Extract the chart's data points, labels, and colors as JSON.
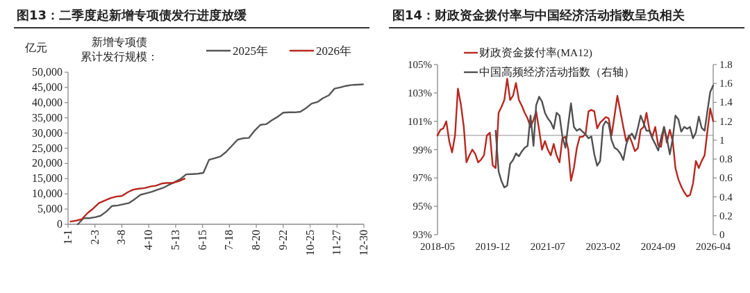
{
  "chart_data": [
    {
      "type": "line",
      "title": "图13：二季度起新增专项债发行进度放缓",
      "ylabel": "亿元",
      "legend_title": "新增专项债累计发行规模：",
      "legend": "top right",
      "grid": false,
      "xlim": [
        "--01-01",
        "--12-30"
      ],
      "xticks": [
        {
          "value": "--01-01",
          "label": "1-1"
        },
        {
          "value": "--02-03",
          "label": "2-3"
        },
        {
          "value": "--03-08",
          "label": "3-8"
        },
        {
          "value": "--04-10",
          "label": "4-10"
        },
        {
          "value": "--05-13",
          "label": "5-13"
        },
        {
          "value": "--06-15",
          "label": "6-15"
        },
        {
          "value": "--07-18",
          "label": "7-18"
        },
        {
          "value": "--08-20",
          "label": "8-20"
        },
        {
          "value": "--09-22",
          "label": "9-22"
        },
        {
          "value": "--10-25",
          "label": "10-25"
        },
        {
          "value": "--11-27",
          "label": "11-27"
        },
        {
          "value": "--12-30",
          "label": "12-30"
        }
      ],
      "ylim": [
        0,
        50000
      ],
      "yticks": [
        0,
        {
          "value": 5000,
          "label": "5,000"
        },
        {
          "value": 10000,
          "label": "10,000"
        },
        {
          "value": 15000,
          "label": "15,000"
        },
        {
          "value": 20000,
          "label": "20,000"
        },
        {
          "value": 25000,
          "label": "25,000"
        },
        {
          "value": 30000,
          "label": "30,000"
        },
        {
          "value": 35000,
          "label": "35,000"
        },
        {
          "value": 40000,
          "label": "40,000"
        },
        {
          "value": 45000,
          "label": "45,000"
        },
        {
          "value": 50000,
          "label": "50,000"
        }
      ],
      "series": [
        {
          "name": "2025年",
          "color": "#555555",
          "x": [
            "--01-13",
            "--01-20",
            "--01-27",
            "--02-03",
            "--02-10",
            "--02-17",
            "--02-24",
            "--03-03",
            "--03-10",
            "--03-17",
            "--03-24",
            "--03-31",
            "--04-07",
            "--04-14",
            "--04-21",
            "--04-28",
            "--05-05",
            "--05-12",
            "--05-19",
            "--05-26",
            "--06-02",
            "--06-09",
            "--06-16",
            "--06-23",
            "--06-30",
            "--07-07",
            "--07-14",
            "--07-21",
            "--07-28",
            "--08-04",
            "--08-11",
            "--08-18",
            "--08-25",
            "--09-01",
            "--09-08",
            "--09-15",
            "--09-22",
            "--09-29",
            "--10-06",
            "--10-13",
            "--10-20",
            "--10-27",
            "--11-03",
            "--11-10",
            "--11-17",
            "--11-24",
            "--12-01",
            "--12-08",
            "--12-15",
            "--12-22",
            "--12-29"
          ],
          "values": [
            0,
            2000,
            2000,
            2300,
            2800,
            4200,
            6000,
            6200,
            6600,
            7000,
            8300,
            9700,
            10200,
            10700,
            11400,
            12000,
            13000,
            13900,
            14900,
            16400,
            16500,
            16600,
            16900,
            21200,
            21700,
            22300,
            23800,
            25800,
            27800,
            28300,
            28400,
            30800,
            32700,
            32900,
            34200,
            35300,
            36700,
            36800,
            36800,
            37000,
            38200,
            39700,
            40200,
            41500,
            42400,
            44600,
            45000,
            45500,
            45800,
            45900,
            46000
          ]
        },
        {
          "name": "2026年",
          "color": "#b8271f",
          "x": [
            "--01-04",
            "--01-11",
            "--01-18",
            "--01-25",
            "--02-01",
            "--02-08",
            "--02-15",
            "--02-22",
            "--03-01",
            "--03-08",
            "--03-15",
            "--03-22",
            "--03-29",
            "--04-05",
            "--04-12",
            "--04-19",
            "--04-26",
            "--05-03",
            "--05-10",
            "--05-17",
            "--05-24"
          ],
          "values": [
            900,
            1200,
            1700,
            3700,
            5200,
            7000,
            7800,
            8600,
            9100,
            9300,
            10500,
            11400,
            11700,
            11900,
            12400,
            12700,
            13400,
            13600,
            13600,
            14200,
            15000
          ]
        }
      ]
    },
    {
      "type": "line",
      "title": "图14：财政资金拨付率与中国经济活动指数呈负相关",
      "legend": "top left",
      "grid": false,
      "x": [
        "2018-05",
        "2018-06",
        "2018-07",
        "2018-08",
        "2018-09",
        "2018-10",
        "2018-11",
        "2018-12",
        "2019-01",
        "2019-02",
        "2019-03",
        "2019-04",
        "2019-05",
        "2019-06",
        "2019-07",
        "2019-08",
        "2019-09",
        "2019-10",
        "2019-11",
        "2019-12",
        "2020-01",
        "2020-02",
        "2020-03",
        "2020-04",
        "2020-05",
        "2020-06",
        "2020-07",
        "2020-08",
        "2020-09",
        "2020-10",
        "2020-11",
        "2020-12",
        "2021-01",
        "2021-02",
        "2021-03",
        "2021-04",
        "2021-05",
        "2021-06",
        "2021-07",
        "2021-08",
        "2021-09",
        "2021-10",
        "2021-11",
        "2021-12",
        "2022-01",
        "2022-02",
        "2022-03",
        "2022-04",
        "2022-05",
        "2022-06",
        "2022-07",
        "2022-08",
        "2022-09",
        "2022-10",
        "2022-11",
        "2022-12",
        "2023-01",
        "2023-02",
        "2023-03",
        "2023-04",
        "2023-05",
        "2023-06",
        "2023-07",
        "2023-08",
        "2023-09",
        "2023-10",
        "2023-11",
        "2023-12",
        "2024-01",
        "2024-02",
        "2024-03",
        "2024-04",
        "2024-05",
        "2024-06",
        "2024-07",
        "2024-08",
        "2024-09",
        "2024-10",
        "2024-11",
        "2024-12",
        "2025-01",
        "2025-02",
        "2025-03",
        "2025-04",
        "2025-05",
        "2025-06",
        "2025-07",
        "2025-08",
        "2025-09",
        "2025-10",
        "2025-11",
        "2025-12",
        "2026-01",
        "2026-02",
        "2026-03",
        "2026-04"
      ],
      "xlim": [
        "2018-05",
        "2026-04"
      ],
      "xticks": [
        "2018-05",
        "2019-12",
        "2021-07",
        "2023-02",
        "2024-09",
        "2026-04"
      ],
      "ylim": [
        93,
        105
      ],
      "yticks": [
        {
          "value": 93,
          "label": "93%"
        },
        {
          "value": 95,
          "label": "95%"
        },
        {
          "value": 97,
          "label": "97%"
        },
        {
          "value": 99,
          "label": "99%"
        },
        {
          "value": 101,
          "label": "101%"
        },
        {
          "value": 103,
          "label": "103%"
        },
        {
          "value": 105,
          "label": "105%"
        }
      ],
      "y2lim": [
        0,
        1.8
      ],
      "y2ticks": [
        0,
        0.2,
        0.4,
        0.6,
        0.8,
        1,
        1.2,
        1.4,
        1.6,
        1.8
      ],
      "ref_lines": [
        {
          "axis": "y",
          "value": 100,
          "color": "#b4b4b4"
        }
      ],
      "series": [
        {
          "name": "财政资金拨付率(MA12)",
          "color": "#b8271f",
          "values": [
            100.0,
            100.4,
            100.5,
            101.0,
            99.6,
            98.8,
            100.0,
            103.3,
            102.2,
            100.6,
            98.1,
            98.6,
            99.0,
            98.7,
            98.1,
            98.3,
            98.6,
            100.0,
            100.2,
            97.9,
            97.7,
            101.6,
            102.0,
            102.5,
            104.0,
            102.5,
            102.8,
            103.7,
            102.5,
            102.1,
            101.6,
            101.2,
            100.6,
            101.1,
            101.7,
            100.4,
            99.0,
            99.6,
            99.0,
            98.6,
            99.4,
            98.6,
            98.1,
            99.8,
            99.9,
            99.0,
            96.8,
            97.7,
            99.1,
            99.9,
            99.9,
            100.1,
            101.7,
            101.8,
            101.7,
            100.5,
            100.9,
            101.1,
            101.3,
            101.2,
            100.0,
            101.4,
            102.8,
            101.7,
            100.6,
            99.6,
            100.0,
            99.5,
            98.9,
            99.1,
            100.4,
            100.6,
            101.6,
            100.4,
            99.9,
            100.6,
            99.3,
            99.2,
            100.6,
            99.5,
            100.4,
            99.6,
            97.7,
            96.9,
            96.4,
            96.0,
            95.7,
            95.8,
            96.6,
            98.2,
            97.7,
            98.2,
            98.6,
            100.4,
            101.9,
            101.0
          ]
        },
        {
          "name": "中国高频经济活动指数（右轴）",
          "color": "#505050",
          "axis": "y2",
          "values": [
            null,
            null,
            null,
            null,
            null,
            null,
            null,
            null,
            null,
            null,
            null,
            null,
            null,
            null,
            null,
            null,
            null,
            null,
            null,
            null,
            1.1,
            0.67,
            0.57,
            0.5,
            0.52,
            0.75,
            0.79,
            0.86,
            0.83,
            0.88,
            0.92,
            0.94,
            1.26,
            0.94,
            1.37,
            1.46,
            1.41,
            1.29,
            1.23,
            1.19,
            1.12,
            1.29,
            1.26,
            1.04,
            0.92,
            1.17,
            1.39,
            1.14,
            1.1,
            1.12,
            1.09,
            1.06,
            1.02,
            1.04,
            0.85,
            0.73,
            0.78,
            1.15,
            1.2,
            1.17,
            1.0,
            0.92,
            0.9,
            0.86,
            0.79,
            0.95,
            1.04,
            1.07,
            1.01,
            1.13,
            1.26,
            1.18,
            1.1,
            1.1,
            1.02,
            0.96,
            0.89,
            1.02,
            1.14,
            1.02,
            0.85,
            1.02,
            1.26,
            1.22,
            1.09,
            1.14,
            1.12,
            1.14,
            1.02,
            1.08,
            1.25,
            1.13,
            1.1,
            1.32,
            1.51,
            1.58
          ]
        }
      ]
    }
  ]
}
